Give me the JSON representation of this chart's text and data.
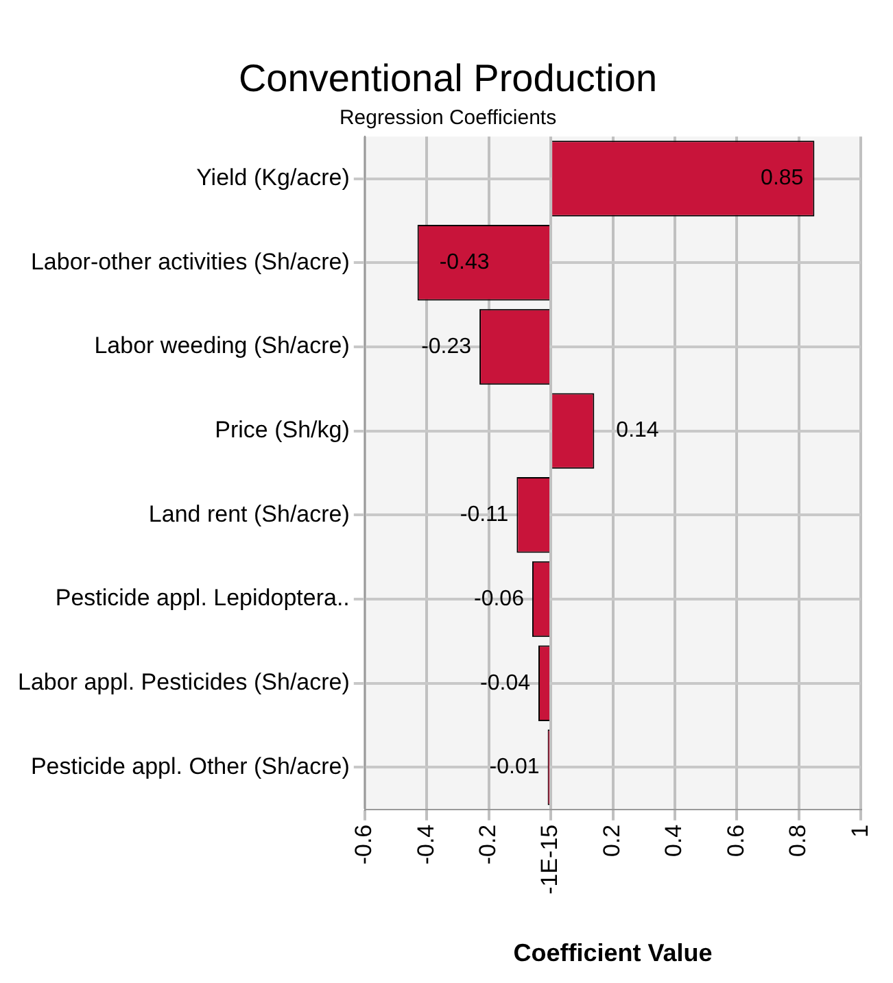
{
  "chart_data": {
    "type": "bar",
    "orientation": "horizontal",
    "title": "Conventional Production",
    "subtitle": "Regression Coefficients",
    "xlabel": "Coefficient Value",
    "categories": [
      "Yield (Kg/acre)",
      "Labor-other activities (Sh/acre)",
      "Labor weeding (Sh/acre)",
      "Price (Sh/kg)",
      "Land rent (Sh/acre)",
      "Pesticide appl. Lepidoptera..",
      "Labor appl. Pesticides (Sh/acre)",
      "Pesticide appl. Other (Sh/acre)"
    ],
    "values": [
      0.85,
      -0.43,
      -0.23,
      0.14,
      -0.11,
      -0.06,
      -0.04,
      -0.01
    ],
    "color": "#c8143a",
    "xlim": [
      -0.6,
      1
    ],
    "xticks": [
      -0.6,
      -0.4,
      -0.2,
      {
        "value": 0,
        "label": "-1E-15"
      },
      0.2,
      0.4,
      0.6,
      0.8,
      1
    ],
    "grid": true,
    "data_labels": true
  }
}
